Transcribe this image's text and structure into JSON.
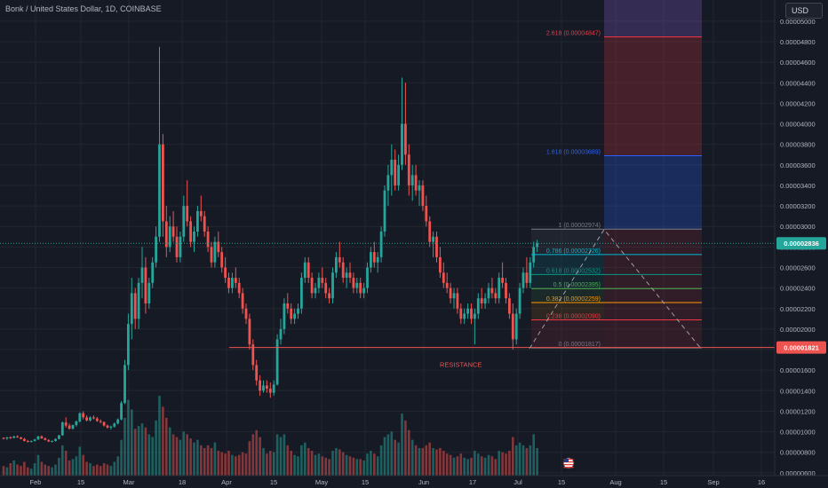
{
  "title": "Bonk / United States Dollar, 1D, COINBASE",
  "currency_button": "USD",
  "colors": {
    "background": "#161a25",
    "up": "#26a69a",
    "down": "#ef5350",
    "grid": "#22262f",
    "axis_text": "#b2b5be"
  },
  "chart_data": {
    "type": "candlestick",
    "x_axis_labels": [
      "Feb",
      "15",
      "Mar",
      "18",
      "Apr",
      "15",
      "May",
      "15",
      "Jun",
      "17",
      "Jul",
      "15",
      "Aug",
      "15",
      "Sep",
      "16"
    ],
    "y_axis_labels": [
      "0.00005000",
      "0.00004800",
      "0.00004600",
      "0.00004400",
      "0.00004200",
      "0.00004000",
      "0.00003800",
      "0.00003600",
      "0.00003400",
      "0.00003200",
      "0.00003000",
      "0.00002800",
      "0.00002600",
      "0.00002400",
      "0.00002200",
      "0.00002000",
      "0.00001800",
      "0.00001600",
      "0.00001400",
      "0.00001200",
      "0.00001000",
      "0.00000800",
      "0.00000600"
    ],
    "y_range": [
      5.9e-06,
      5.12e-05
    ],
    "current_price": {
      "label": "0.00002836",
      "value": 2.836e-05,
      "color": "#26a69a"
    },
    "support_line": {
      "label": "0.00001821",
      "value": 1.821e-05,
      "color": "#ef5350"
    },
    "annotation": {
      "text": "RESISTANCE",
      "color": "#ef5350"
    },
    "fib_levels": [
      {
        "ratio": "0",
        "label": "0 (0.00001817)",
        "value": 1.817e-05,
        "color": "#787b86"
      },
      {
        "ratio": "0.236",
        "label": "0.236 (0.00002090)",
        "value": 2.09e-05,
        "color": "#f23645"
      },
      {
        "ratio": "0.382",
        "label": "0.382 (0.00002259)",
        "value": 2.259e-05,
        "color": "#ff9800"
      },
      {
        "ratio": "0.5",
        "label": "0.5 (0.00002395)",
        "value": 2.395e-05,
        "color": "#4caf50"
      },
      {
        "ratio": "0.618",
        "label": "0.618 (0.00002532)",
        "value": 2.532e-05,
        "color": "#089981"
      },
      {
        "ratio": "0.786",
        "label": "0.786 (0.00002726)",
        "value": 2.726e-05,
        "color": "#00bcd4"
      },
      {
        "ratio": "1",
        "label": "1 (0.00002974)",
        "value": 2.974e-05,
        "color": "#787b86"
      },
      {
        "ratio": "1.618",
        "label": "1.618 (0.00003689)",
        "value": 3.689e-05,
        "color": "#2962ff"
      },
      {
        "ratio": "2.618",
        "label": "2.618 (0.00004847)",
        "value": 4.847e-05,
        "color": "#f23645"
      }
    ],
    "anchors": [
      {
        "name": "start",
        "value": 1.81e-05
      },
      {
        "name": "high",
        "value": 2.97e-05
      },
      {
        "name": "low",
        "value": 1.82e-05
      }
    ],
    "ohlc": [
      [
        9.4e-06,
        9.45e-06,
        9.25e-06,
        9.35e-06,
        7
      ],
      [
        9.35e-06,
        9.5e-06,
        9.2e-06,
        9.45e-06,
        6
      ],
      [
        9.45e-06,
        9.55e-06,
        9.3e-06,
        9.4e-06,
        9
      ],
      [
        9.4e-06,
        9.6e-06,
        9.35e-06,
        9.55e-06,
        11
      ],
      [
        9.55e-06,
        9.65e-06,
        9.4e-06,
        9.45e-06,
        8
      ],
      [
        9.45e-06,
        9.5e-06,
        9.25e-06,
        9.3e-06,
        7
      ],
      [
        9.3e-06,
        9.4e-06,
        9.05e-06,
        9.1e-06,
        10
      ],
      [
        9.1e-06,
        9.2e-06,
        8.95e-06,
        9.05e-06,
        6
      ],
      [
        9.05e-06,
        9.15e-06,
        8.95e-06,
        9.1e-06,
        5
      ],
      [
        9.1e-06,
        9.3e-06,
        9.05e-06,
        9.25e-06,
        9
      ],
      [
        9.25e-06,
        9.6e-06,
        9.2e-06,
        9.55e-06,
        15
      ],
      [
        9.55e-06,
        9.65e-06,
        9.3e-06,
        9.35e-06,
        10
      ],
      [
        9.35e-06,
        9.45e-06,
        9.15e-06,
        9.2e-06,
        8
      ],
      [
        9.2e-06,
        9.25e-06,
        9e-06,
        9.05e-06,
        7
      ],
      [
        9.05e-06,
        9.15e-06,
        8.95e-06,
        9.1e-06,
        6
      ],
      [
        9.1e-06,
        9.35e-06,
        9.05e-06,
        9.3e-06,
        8
      ],
      [
        9.3e-06,
        9.7e-06,
        9.25e-06,
        9.65e-06,
        13
      ],
      [
        9.65e-06,
        1.1e-05,
        9.6e-06,
        1.09e-05,
        22
      ],
      [
        1.09e-05,
        1.14e-05,
        1.04e-05,
        1.06e-05,
        18
      ],
      [
        1.06e-05,
        1.08e-05,
        1.02e-05,
        1.03e-05,
        11
      ],
      [
        1.03e-05,
        1.07e-05,
        1.02e-05,
        1.065e-05,
        12
      ],
      [
        1.065e-05,
        1.11e-05,
        1.05e-05,
        1.1e-05,
        14
      ],
      [
        1.1e-05,
        1.19e-05,
        1.09e-05,
        1.18e-05,
        21
      ],
      [
        1.18e-05,
        1.2e-05,
        1.12e-05,
        1.14e-05,
        15
      ],
      [
        1.14e-05,
        1.16e-05,
        1.1e-05,
        1.11e-05,
        10
      ],
      [
        1.11e-05,
        1.15e-05,
        1.1e-05,
        1.14e-05,
        9
      ],
      [
        1.14e-05,
        1.16e-05,
        1.12e-05,
        1.13e-05,
        7
      ],
      [
        1.13e-05,
        1.145e-05,
        1.095e-05,
        1.105e-05,
        8
      ],
      [
        1.105e-05,
        1.12e-05,
        1.08e-05,
        1.095e-05,
        7
      ],
      [
        1.095e-05,
        1.1e-05,
        1.05e-05,
        1.06e-05,
        9
      ],
      [
        1.06e-05,
        1.07e-05,
        1.03e-05,
        1.04e-05,
        8
      ],
      [
        1.04e-05,
        1.06e-05,
        1.02e-05,
        1.05e-05,
        7
      ],
      [
        1.05e-05,
        1.09e-05,
        1.04e-05,
        1.08e-05,
        10
      ],
      [
        1.08e-05,
        1.13e-05,
        1.07e-05,
        1.12e-05,
        14
      ],
      [
        1.12e-05,
        1.3e-05,
        1.11e-05,
        1.28e-05,
        26
      ],
      [
        1.28e-05,
        1.7e-05,
        1.27e-05,
        1.65e-05,
        42
      ],
      [
        1.65e-05,
        2.15e-05,
        1.6e-05,
        2.05e-05,
        55
      ],
      [
        2.05e-05,
        2.5e-05,
        1.9e-05,
        2.35e-05,
        48
      ],
      [
        2.35e-05,
        2.4e-05,
        2e-05,
        2.1e-05,
        34
      ],
      [
        2.1e-05,
        2.5e-05,
        2e-05,
        2.45e-05,
        36
      ],
      [
        2.45e-05,
        2.8e-05,
        2.3e-05,
        2.6e-05,
        38
      ],
      [
        2.6e-05,
        2.7e-05,
        2.15e-05,
        2.25e-05,
        35
      ],
      [
        2.25e-05,
        2.5e-05,
        2.2e-05,
        2.45e-05,
        30
      ],
      [
        2.45e-05,
        2.7e-05,
        2.4e-05,
        2.65e-05,
        28
      ],
      [
        2.65e-05,
        3e-05,
        2.6e-05,
        2.9e-05,
        40
      ],
      [
        2.9e-05,
        4.75e-05,
        2.85e-05,
        3.8e-05,
        58
      ],
      [
        3.8e-05,
        3.9e-05,
        2.9e-05,
        3.05e-05,
        50
      ],
      [
        3.05e-05,
        3.2e-05,
        2.7e-05,
        2.8e-05,
        42
      ],
      [
        2.8e-05,
        3.1e-05,
        2.75e-05,
        3e-05,
        35
      ],
      [
        3e-05,
        3.15e-05,
        2.85e-05,
        2.9e-05,
        30
      ],
      [
        2.9e-05,
        3e-05,
        2.65e-05,
        2.7e-05,
        28
      ],
      [
        2.7e-05,
        2.95e-05,
        2.65e-05,
        2.9e-05,
        26
      ],
      [
        2.9e-05,
        3.3e-05,
        2.85e-05,
        3.2e-05,
        32
      ],
      [
        3.2e-05,
        3.45e-05,
        3e-05,
        3.05e-05,
        30
      ],
      [
        3.05e-05,
        3.1e-05,
        2.8e-05,
        2.85e-05,
        27
      ],
      [
        2.85e-05,
        3e-05,
        2.75e-05,
        2.95e-05,
        24
      ],
      [
        2.95e-05,
        3.2e-05,
        2.9e-05,
        3.15e-05,
        26
      ],
      [
        3.15e-05,
        3.3e-05,
        3.05e-05,
        3.1e-05,
        22
      ],
      [
        3.1e-05,
        3.15e-05,
        2.9e-05,
        2.95e-05,
        20
      ],
      [
        2.95e-05,
        3e-05,
        2.75e-05,
        2.8e-05,
        22
      ],
      [
        2.8e-05,
        2.85e-05,
        2.6e-05,
        2.65e-05,
        20
      ],
      [
        2.65e-05,
        2.9e-05,
        2.6e-05,
        2.85e-05,
        24
      ],
      [
        2.85e-05,
        2.95e-05,
        2.7e-05,
        2.75e-05,
        18
      ],
      [
        2.75e-05,
        2.8e-05,
        2.55e-05,
        2.6e-05,
        17
      ],
      [
        2.6e-05,
        2.7e-05,
        2.45e-05,
        2.5e-05,
        16
      ],
      [
        2.5e-05,
        2.55e-05,
        2.35e-05,
        2.4e-05,
        18
      ],
      [
        2.4e-05,
        2.55e-05,
        2.35e-05,
        2.5e-05,
        15
      ],
      [
        2.5e-05,
        2.6e-05,
        2.4e-05,
        2.45e-05,
        14
      ],
      [
        2.45e-05,
        2.5e-05,
        2.3e-05,
        2.35e-05,
        15
      ],
      [
        2.35e-05,
        2.4e-05,
        2.15e-05,
        2.2e-05,
        17
      ],
      [
        2.2e-05,
        2.25e-05,
        2.05e-05,
        2.1e-05,
        16
      ],
      [
        2.1e-05,
        2.15e-05,
        1.8e-05,
        1.85e-05,
        25
      ],
      [
        1.85e-05,
        1.9e-05,
        1.6e-05,
        1.65e-05,
        30
      ],
      [
        1.65e-05,
        1.7e-05,
        1.45e-05,
        1.5e-05,
        33
      ],
      [
        1.5e-05,
        1.55e-05,
        1.35e-05,
        1.4e-05,
        28
      ],
      [
        1.4e-05,
        1.5e-05,
        1.38e-05,
        1.45e-05,
        20
      ],
      [
        1.45e-05,
        1.5e-05,
        1.38e-05,
        1.42e-05,
        16
      ],
      [
        1.42e-05,
        1.48e-05,
        1.33e-05,
        1.38e-05,
        18
      ],
      [
        1.38e-05,
        1.5e-05,
        1.35e-05,
        1.46e-05,
        17
      ],
      [
        1.46e-05,
        1.95e-05,
        1.45e-05,
        1.9e-05,
        30
      ],
      [
        1.9e-05,
        2.1e-05,
        1.85e-05,
        2e-05,
        28
      ],
      [
        2e-05,
        2.3e-05,
        1.95e-05,
        2.25e-05,
        30
      ],
      [
        2.25e-05,
        2.35e-05,
        2.15e-05,
        2.2e-05,
        22
      ],
      [
        2.2e-05,
        2.25e-05,
        2.05e-05,
        2.1e-05,
        18
      ],
      [
        2.1e-05,
        2.2e-05,
        2.05e-05,
        2.15e-05,
        15
      ],
      [
        2.15e-05,
        2.25e-05,
        2.1e-05,
        2.2e-05,
        14
      ],
      [
        2.2e-05,
        2.55e-05,
        2.15e-05,
        2.5e-05,
        22
      ],
      [
        2.5e-05,
        2.7e-05,
        2.45e-05,
        2.65e-05,
        24
      ],
      [
        2.65e-05,
        2.7e-05,
        2.45e-05,
        2.5e-05,
        20
      ],
      [
        2.5e-05,
        2.55e-05,
        2.3e-05,
        2.35e-05,
        18
      ],
      [
        2.35e-05,
        2.45e-05,
        2.3e-05,
        2.4e-05,
        15
      ],
      [
        2.4e-05,
        2.55e-05,
        2.35e-05,
        2.5e-05,
        16
      ],
      [
        2.5e-05,
        2.6e-05,
        2.4e-05,
        2.45e-05,
        14
      ],
      [
        2.45e-05,
        2.5e-05,
        2.3e-05,
        2.35e-05,
        13
      ],
      [
        2.35e-05,
        2.4e-05,
        2.25e-05,
        2.3e-05,
        12
      ],
      [
        2.3e-05,
        2.6e-05,
        2.25e-05,
        2.55e-05,
        18
      ],
      [
        2.55e-05,
        2.75e-05,
        2.5e-05,
        2.7e-05,
        20
      ],
      [
        2.7e-05,
        2.85e-05,
        2.6e-05,
        2.65e-05,
        19
      ],
      [
        2.65e-05,
        2.7e-05,
        2.45e-05,
        2.5e-05,
        17
      ],
      [
        2.5e-05,
        2.6e-05,
        2.4e-05,
        2.55e-05,
        15
      ],
      [
        2.55e-05,
        2.65e-05,
        2.45e-05,
        2.5e-05,
        14
      ],
      [
        2.5e-05,
        2.55e-05,
        2.35e-05,
        2.4e-05,
        13
      ],
      [
        2.4e-05,
        2.5e-05,
        2.35e-05,
        2.45e-05,
        12
      ],
      [
        2.45e-05,
        2.5e-05,
        2.3e-05,
        2.35e-05,
        12
      ],
      [
        2.35e-05,
        2.45e-05,
        2.3e-05,
        2.4e-05,
        11
      ],
      [
        2.4e-05,
        2.65e-05,
        2.35e-05,
        2.6e-05,
        16
      ],
      [
        2.6e-05,
        2.8e-05,
        2.55e-05,
        2.75e-05,
        18
      ],
      [
        2.75e-05,
        2.85e-05,
        2.6e-05,
        2.65e-05,
        16
      ],
      [
        2.65e-05,
        2.75e-05,
        2.55e-05,
        2.7e-05,
        14
      ],
      [
        2.7e-05,
        3e-05,
        2.65e-05,
        2.95e-05,
        22
      ],
      [
        2.95e-05,
        3.4e-05,
        2.9e-05,
        3.35e-05,
        28
      ],
      [
        3.35e-05,
        3.6e-05,
        3.2e-05,
        3.5e-05,
        30
      ],
      [
        3.5e-05,
        3.8e-05,
        3.3e-05,
        3.65e-05,
        32
      ],
      [
        3.65e-05,
        3.75e-05,
        3.35e-05,
        3.4e-05,
        26
      ],
      [
        3.4e-05,
        3.7e-05,
        3.35e-05,
        3.6e-05,
        24
      ],
      [
        3.6e-05,
        4.45e-05,
        3.55e-05,
        4e-05,
        45
      ],
      [
        4e-05,
        4.4e-05,
        3.6e-05,
        3.7e-05,
        40
      ],
      [
        3.7e-05,
        3.8e-05,
        3.3e-05,
        3.4e-05,
        33
      ],
      [
        3.4e-05,
        3.6e-05,
        3.25e-05,
        3.5e-05,
        26
      ],
      [
        3.5e-05,
        3.6e-05,
        3.3e-05,
        3.35e-05,
        22
      ],
      [
        3.35e-05,
        3.45e-05,
        3.2e-05,
        3.4e-05,
        20
      ],
      [
        3.4e-05,
        3.45e-05,
        3.15e-05,
        3.2e-05,
        20
      ],
      [
        3.2e-05,
        3.3e-05,
        3e-05,
        3.05e-05,
        22
      ],
      [
        3.05e-05,
        3.1e-05,
        2.8e-05,
        2.85e-05,
        24
      ],
      [
        2.85e-05,
        2.95e-05,
        2.7e-05,
        2.9e-05,
        20
      ],
      [
        2.9e-05,
        2.95e-05,
        2.65e-05,
        2.7e-05,
        19
      ],
      [
        2.7e-05,
        2.8e-05,
        2.5e-05,
        2.55e-05,
        20
      ],
      [
        2.55e-05,
        2.65e-05,
        2.4e-05,
        2.45e-05,
        18
      ],
      [
        2.45e-05,
        2.55e-05,
        2.35e-05,
        2.4e-05,
        16
      ],
      [
        2.4e-05,
        2.45e-05,
        2.25e-05,
        2.3e-05,
        15
      ],
      [
        2.3e-05,
        2.4e-05,
        2.2e-05,
        2.35e-05,
        13
      ],
      [
        2.35e-05,
        2.4e-05,
        2.15e-05,
        2.2e-05,
        14
      ],
      [
        2.2e-05,
        2.25e-05,
        2.05e-05,
        2.1e-05,
        16
      ],
      [
        2.1e-05,
        2.2e-05,
        2.05e-05,
        2.15e-05,
        13
      ],
      [
        2.15e-05,
        2.25e-05,
        2.1e-05,
        2.2e-05,
        12
      ],
      [
        2.2e-05,
        2.25e-05,
        2.05e-05,
        2.1e-05,
        13
      ],
      [
        2.1e-05,
        2.2e-05,
        1.85e-05,
        2.15e-05,
        18
      ],
      [
        2.15e-05,
        2.35e-05,
        2.1e-05,
        2.3e-05,
        16
      ],
      [
        2.3e-05,
        2.4e-05,
        2.2e-05,
        2.25e-05,
        14
      ],
      [
        2.25e-05,
        2.35e-05,
        2.2e-05,
        2.3e-05,
        13
      ],
      [
        2.3e-05,
        2.45e-05,
        2.25e-05,
        2.4e-05,
        15
      ],
      [
        2.4e-05,
        2.5e-05,
        2.3e-05,
        2.35e-05,
        14
      ],
      [
        2.35e-05,
        2.4e-05,
        2.25e-05,
        2.3e-05,
        12
      ],
      [
        2.3e-05,
        2.55e-05,
        2.25e-05,
        2.5e-05,
        18
      ],
      [
        2.5e-05,
        2.65e-05,
        2.4e-05,
        2.45e-05,
        17
      ],
      [
        2.45e-05,
        2.5e-05,
        2.25e-05,
        2.3e-05,
        16
      ],
      [
        2.3e-05,
        2.35e-05,
        2.1e-05,
        2.15e-05,
        18
      ],
      [
        2.15e-05,
        2.25e-05,
        1.8e-05,
        1.9e-05,
        28
      ],
      [
        1.9e-05,
        2.2e-05,
        1.85e-05,
        2.15e-05,
        22
      ],
      [
        2.15e-05,
        2.45e-05,
        2.1e-05,
        2.4e-05,
        24
      ],
      [
        2.4e-05,
        2.6e-05,
        2.35e-05,
        2.55e-05,
        22
      ],
      [
        2.55e-05,
        2.7e-05,
        2.4e-05,
        2.45e-05,
        20
      ],
      [
        2.45e-05,
        2.7e-05,
        2.4e-05,
        2.65e-05,
        22
      ],
      [
        2.65e-05,
        2.85e-05,
        2.6e-05,
        2.8e-05,
        30
      ],
      [
        2.8e-05,
        2.87e-05,
        2.75e-05,
        2.836e-05,
        20
      ]
    ]
  }
}
